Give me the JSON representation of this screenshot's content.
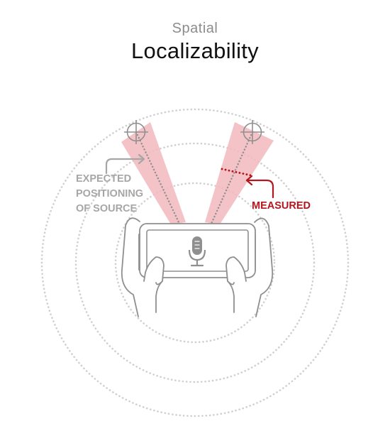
{
  "header": {
    "subtitle": "Spatial",
    "title": "Localizability"
  },
  "labels": {
    "expected_line1": "EXPECTED",
    "expected_line2": "POSITIONING",
    "expected_line3": "OF SOURCE",
    "measured": "MEASURED"
  },
  "colors": {
    "beam_fill": "#f2b9bd",
    "measured_accent": "#b3161e",
    "label_gray": "#a6a6a6",
    "line_gray": "#8f8f8f",
    "ring_dots": "#c9c9c9"
  },
  "icons": {
    "center": "microphone-icon",
    "targets": "crosshair-icon"
  }
}
